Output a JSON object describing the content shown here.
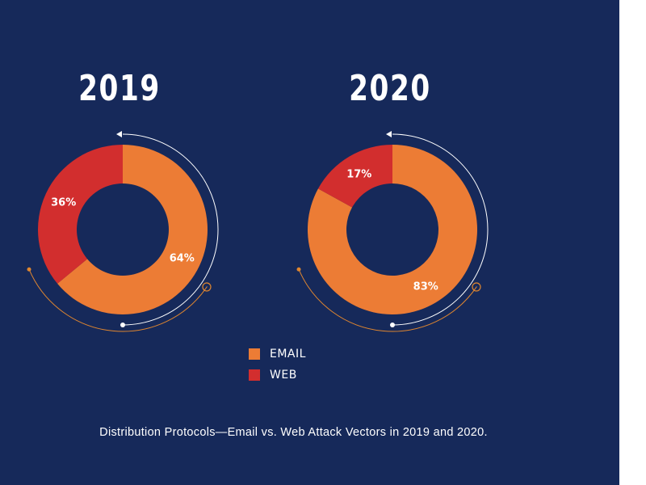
{
  "caption": "Distribution Protocols—Email vs. Web Attack Vectors in 2019 and 2020.",
  "colors": {
    "background": "#16295a",
    "email": "#ec7c35",
    "web": "#d22e2e",
    "arc_white": "#ffffff",
    "arc_orange": "#e0862f"
  },
  "legend": [
    {
      "label": "EMAIL",
      "color": "#ec7c35"
    },
    {
      "label": "WEB",
      "color": "#d22e2e"
    }
  ],
  "chart_data": [
    {
      "type": "pie",
      "title": "2019",
      "categories": [
        "EMAIL",
        "WEB"
      ],
      "values": [
        64,
        36
      ],
      "labels": [
        "64%",
        "36%"
      ]
    },
    {
      "type": "pie",
      "title": "2020",
      "categories": [
        "EMAIL",
        "WEB"
      ],
      "values": [
        83,
        17
      ],
      "labels": [
        "83%",
        "17%"
      ]
    }
  ]
}
